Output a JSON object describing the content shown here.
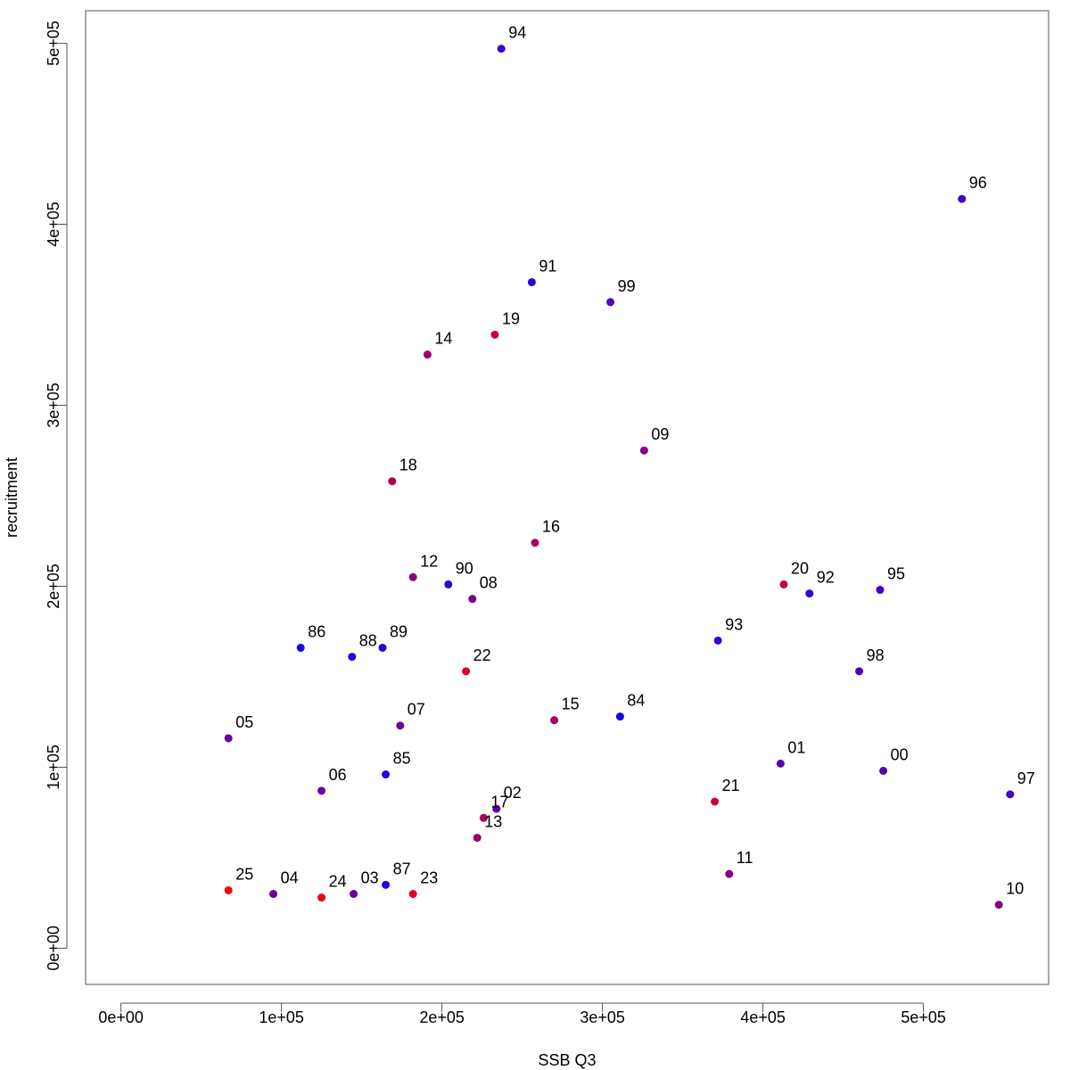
{
  "chart_data": {
    "type": "scatter",
    "xlabel": "SSB Q3",
    "ylabel": "recruitment",
    "xlim": [
      -22000,
      578000
    ],
    "ylim": [
      -20000,
      518000
    ],
    "x_ticks": [
      0,
      100000,
      200000,
      300000,
      400000,
      500000
    ],
    "x_tick_labels": [
      "0e+00",
      "1e+05",
      "2e+05",
      "3e+05",
      "4e+05",
      "5e+05"
    ],
    "y_ticks": [
      0,
      100000,
      200000,
      300000,
      400000,
      500000
    ],
    "y_tick_labels": [
      "0e+00",
      "1e+05",
      "2e+05",
      "3e+05",
      "4e+05",
      "5e+05"
    ],
    "grid": false,
    "color_scale": "blue (earliest years) to red (latest years)",
    "points": [
      {
        "label": "84",
        "x": 311000,
        "y": 128000,
        "color": "#1a00f0"
      },
      {
        "label": "85",
        "x": 165000,
        "y": 96000,
        "color": "#1c00e8"
      },
      {
        "label": "86",
        "x": 112000,
        "y": 166000,
        "color": "#1800ee"
      },
      {
        "label": "87",
        "x": 165000,
        "y": 35000,
        "color": "#2000e6"
      },
      {
        "label": "88",
        "x": 144000,
        "y": 161000,
        "color": "#2200e4"
      },
      {
        "label": "89",
        "x": 163000,
        "y": 166000,
        "color": "#2800e0"
      },
      {
        "label": "90",
        "x": 204000,
        "y": 201000,
        "color": "#2a00de"
      },
      {
        "label": "91",
        "x": 256000,
        "y": 368000,
        "color": "#2e00da"
      },
      {
        "label": "92",
        "x": 429000,
        "y": 196000,
        "color": "#3200d6"
      },
      {
        "label": "93",
        "x": 372000,
        "y": 170000,
        "color": "#3600d2"
      },
      {
        "label": "94",
        "x": 237000,
        "y": 497000,
        "color": "#3a00ce"
      },
      {
        "label": "95",
        "x": 473000,
        "y": 198000,
        "color": "#4000c8"
      },
      {
        "label": "96",
        "x": 524000,
        "y": 414000,
        "color": "#4400c4"
      },
      {
        "label": "97",
        "x": 554000,
        "y": 85000,
        "color": "#4800c0"
      },
      {
        "label": "98",
        "x": 460000,
        "y": 153000,
        "color": "#4e00ba"
      },
      {
        "label": "99",
        "x": 305000,
        "y": 357000,
        "color": "#5200b6"
      },
      {
        "label": "00",
        "x": 475000,
        "y": 98000,
        "color": "#5600b2"
      },
      {
        "label": "01",
        "x": 411000,
        "y": 102000,
        "color": "#5a00ae"
      },
      {
        "label": "02",
        "x": 234000,
        "y": 77000,
        "color": "#5e00aa"
      },
      {
        "label": "03",
        "x": 145000,
        "y": 30000,
        "color": "#6400a4"
      },
      {
        "label": "04",
        "x": 95000,
        "y": 30000,
        "color": "#6800a0"
      },
      {
        "label": "05",
        "x": 67000,
        "y": 116000,
        "color": "#6c009c"
      },
      {
        "label": "06",
        "x": 125000,
        "y": 87000,
        "color": "#700098"
      },
      {
        "label": "07",
        "x": 174000,
        "y": 123000,
        "color": "#760092"
      },
      {
        "label": "08",
        "x": 219000,
        "y": 193000,
        "color": "#7a008e"
      },
      {
        "label": "09",
        "x": 326000,
        "y": 275000,
        "color": "#800088"
      },
      {
        "label": "10",
        "x": 547000,
        "y": 24000,
        "color": "#860082"
      },
      {
        "label": "11",
        "x": 379000,
        "y": 41000,
        "color": "#8a007e"
      },
      {
        "label": "12",
        "x": 182000,
        "y": 205000,
        "color": "#900078"
      },
      {
        "label": "13",
        "x": 222000,
        "y": 61000,
        "color": "#960072"
      },
      {
        "label": "14",
        "x": 191000,
        "y": 328000,
        "color": "#9c006c"
      },
      {
        "label": "15",
        "x": 270000,
        "y": 126000,
        "color": "#a20066"
      },
      {
        "label": "16",
        "x": 258000,
        "y": 224000,
        "color": "#aa005e"
      },
      {
        "label": "17",
        "x": 226000,
        "y": 72000,
        "color": "#b00058"
      },
      {
        "label": "18",
        "x": 169000,
        "y": 258000,
        "color": "#b80050"
      },
      {
        "label": "19",
        "x": 233000,
        "y": 339000,
        "color": "#c00048"
      },
      {
        "label": "20",
        "x": 413000,
        "y": 201000,
        "color": "#c80040"
      },
      {
        "label": "21",
        "x": 370000,
        "y": 81000,
        "color": "#d00038"
      },
      {
        "label": "22",
        "x": 215000,
        "y": 153000,
        "color": "#da002e"
      },
      {
        "label": "23",
        "x": 182000,
        "y": 30000,
        "color": "#e40024"
      },
      {
        "label": "24",
        "x": 125000,
        "y": 28000,
        "color": "#ee001a"
      },
      {
        "label": "25",
        "x": 67000,
        "y": 32000,
        "color": "#fa000c"
      }
    ]
  }
}
